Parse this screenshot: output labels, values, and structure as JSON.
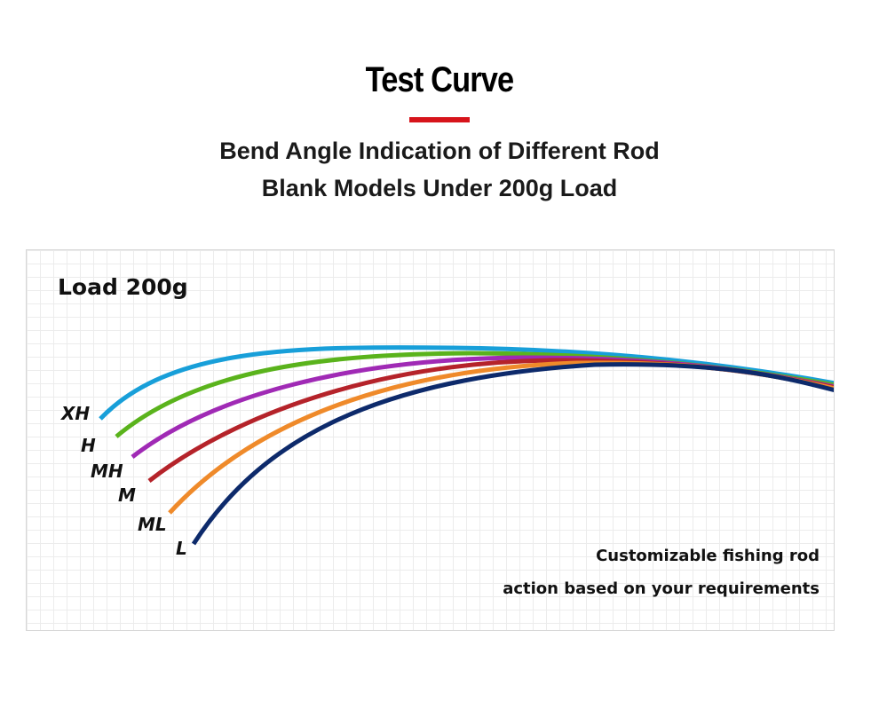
{
  "header": {
    "title": "Test Curve",
    "subtitle_line1": "Bend Angle Indication of Different Rod",
    "subtitle_line2": "Blank Models Under 200g Load"
  },
  "panel": {
    "load_label": "Load 200g",
    "note_line1": "Customizable fishing rod",
    "note_line2": "action based on your requirements"
  },
  "models": [
    {
      "label": "XH",
      "color": "#189fd9"
    },
    {
      "label": "H",
      "color": "#5ab31c"
    },
    {
      "label": "MH",
      "color": "#a02ab5"
    },
    {
      "label": "M",
      "color": "#b5232a"
    },
    {
      "label": "ML",
      "color": "#ef8a2a"
    },
    {
      "label": "L",
      "color": "#0d2a6b"
    }
  ]
}
